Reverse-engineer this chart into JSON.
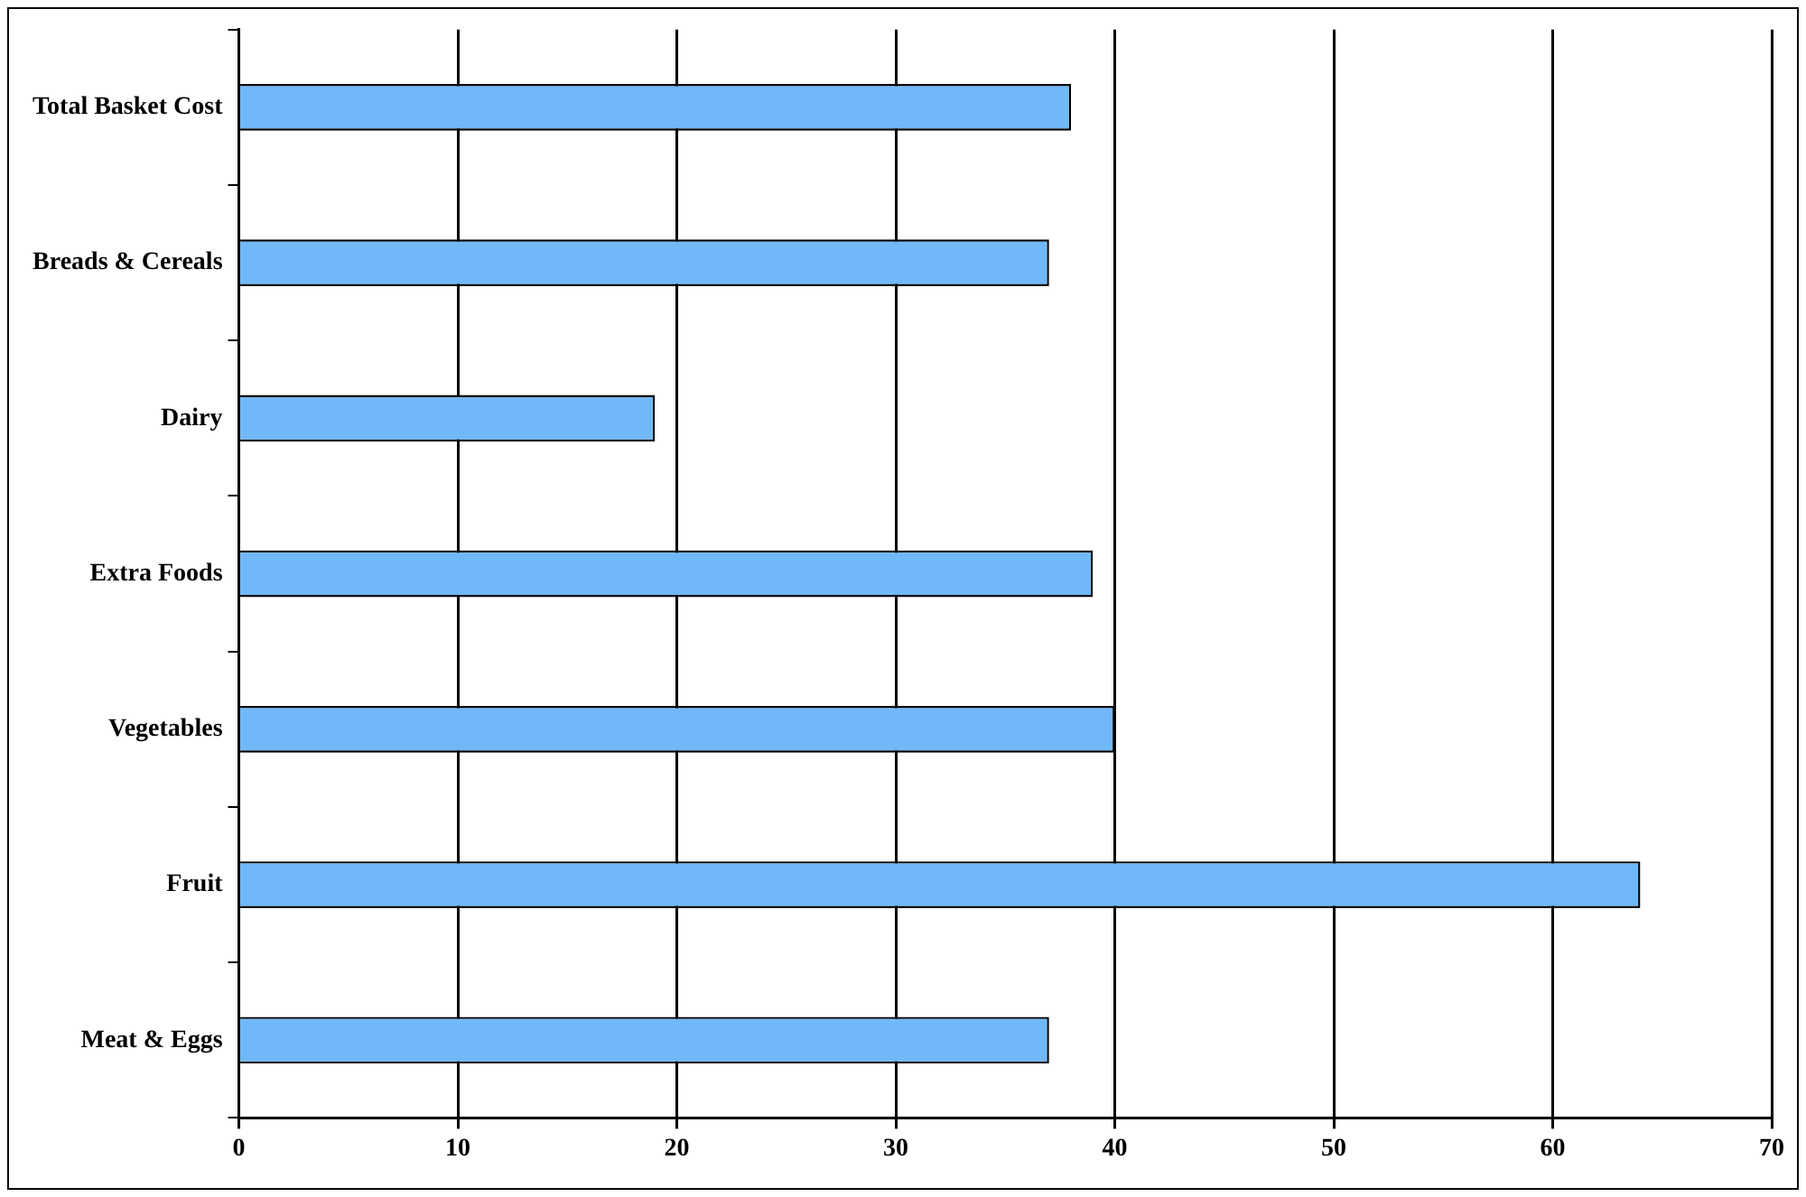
{
  "chart_data": {
    "type": "bar",
    "orientation": "horizontal",
    "categories": [
      "Total Basket Cost",
      "Breads & Cereals",
      "Dairy",
      "Extra Foods",
      "Vegetables",
      "Fruit",
      "Meat & Eggs"
    ],
    "values": [
      38,
      37,
      19,
      39,
      40,
      64,
      37
    ],
    "color": "#70b8f8",
    "xlim": [
      0,
      70
    ],
    "xticks": [
      0,
      10,
      20,
      30,
      40,
      50,
      60,
      70
    ],
    "grid": "x",
    "legend": false
  }
}
